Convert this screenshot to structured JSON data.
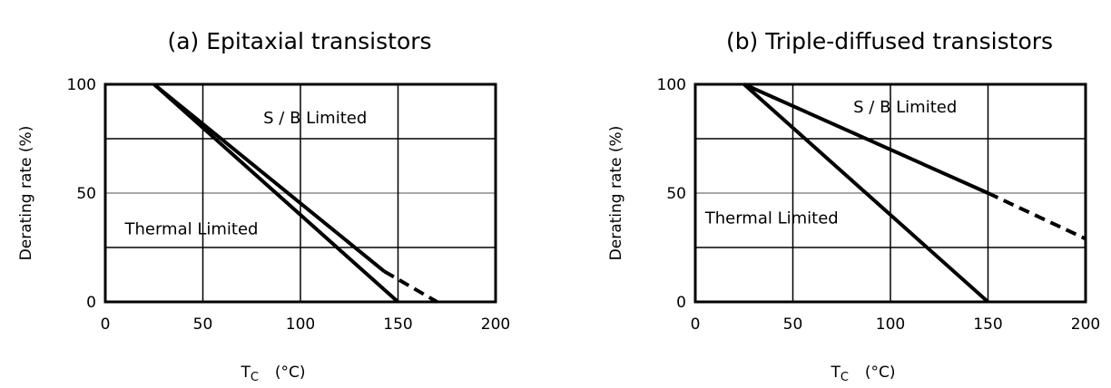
{
  "chart_data": [
    {
      "type": "line",
      "title": "(a) Epitaxial transistors",
      "xlabel_main": "T",
      "xlabel_sub": "C",
      "xlabel_unit": "(°C)",
      "ylabel": "Derating rate (%)",
      "xlim": [
        0,
        200
      ],
      "ylim": [
        0,
        100
      ],
      "xticks": [
        "0",
        "50",
        "100",
        "150",
        "200"
      ],
      "yticks": [
        "0",
        "50",
        "100"
      ],
      "grid": true,
      "series": [
        {
          "name": "S / B Limited",
          "x": [
            25,
            143,
            170
          ],
          "y": [
            100,
            14,
            0
          ],
          "dashed_from_index": 1
        },
        {
          "name": "Thermal Limited",
          "x": [
            25,
            150
          ],
          "y": [
            100,
            0
          ],
          "dashed_from_index": null
        }
      ],
      "annotations": [
        {
          "text": "S / B Limited",
          "x": 81,
          "y": 82
        },
        {
          "text": "Thermal Limited",
          "x": 10,
          "y": 31
        }
      ]
    },
    {
      "type": "line",
      "title": "(b) Triple-diffused transistors",
      "xlabel_main": "T",
      "xlabel_sub": "C",
      "xlabel_unit": "(°C)",
      "ylabel": "Derating rate (%)",
      "xlim": [
        0,
        200
      ],
      "ylim": [
        0,
        100
      ],
      "xticks": [
        "0",
        "50",
        "100",
        "150",
        "200"
      ],
      "yticks": [
        "0",
        "50",
        "100"
      ],
      "grid": true,
      "series": [
        {
          "name": "S / B Limited",
          "x": [
            25,
            150,
            200
          ],
          "y": [
            100,
            50,
            29
          ],
          "dashed_from_index": 1
        },
        {
          "name": "Thermal Limited",
          "x": [
            25,
            150
          ],
          "y": [
            100,
            0
          ],
          "dashed_from_index": null
        }
      ],
      "annotations": [
        {
          "text": "S / B Limited",
          "x": 81,
          "y": 87
        },
        {
          "text": "Thermal Limited",
          "x": 5,
          "y": 36
        }
      ]
    }
  ]
}
